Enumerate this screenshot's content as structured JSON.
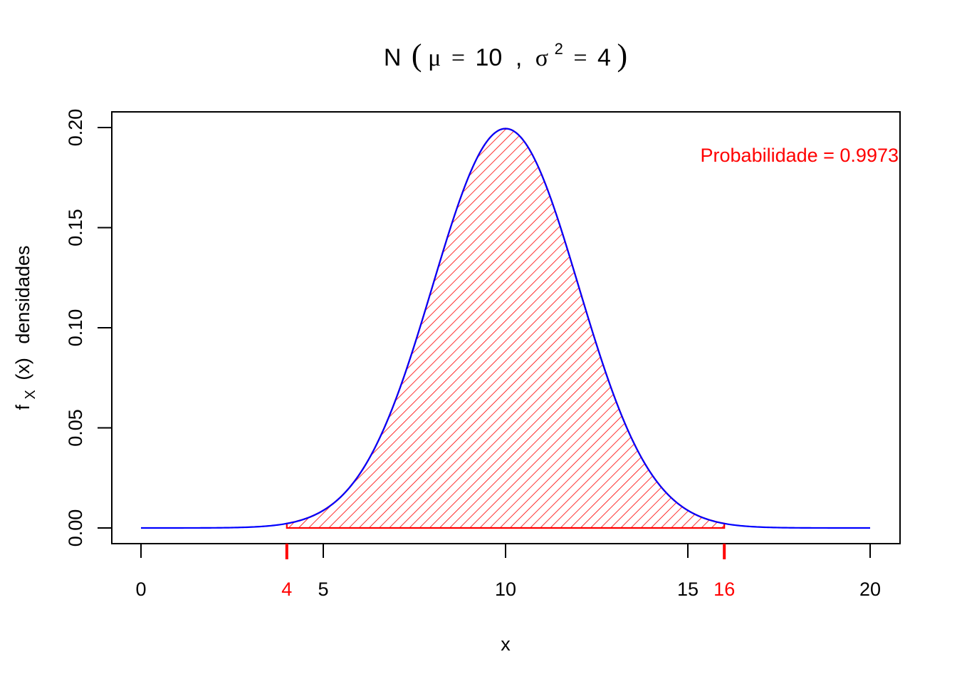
{
  "chart_data": {
    "type": "area",
    "title": {
      "prefix": "N",
      "mu_symbol": "μ",
      "equals": "=",
      "mu_value": "10",
      "separator": ",",
      "sigma_symbol": "σ",
      "sigma_exponent": "2",
      "sigma_value": "4"
    },
    "distribution": {
      "mean": 10,
      "variance": 4
    },
    "xlabel": "x",
    "ylabel": {
      "func": "f",
      "subscript": "X",
      "argument": "(x)",
      "suffix": "densidades"
    },
    "xlim": [
      0,
      20
    ],
    "ylim": [
      0,
      0.2
    ],
    "x_ticks": [
      "0",
      "5",
      "10",
      "15",
      "20"
    ],
    "y_ticks": [
      "0.00",
      "0.05",
      "0.10",
      "0.15",
      "0.20"
    ],
    "shaded_interval": {
      "lower": 4,
      "upper": 16,
      "lower_label": "4",
      "upper_label": "16"
    },
    "annotation": "Probabilidade = 0.9973",
    "grid": false,
    "colors": {
      "curve": "#0000ff",
      "shade": "#ff0000",
      "axis": "#000000",
      "annotation": "#ff0000"
    }
  }
}
